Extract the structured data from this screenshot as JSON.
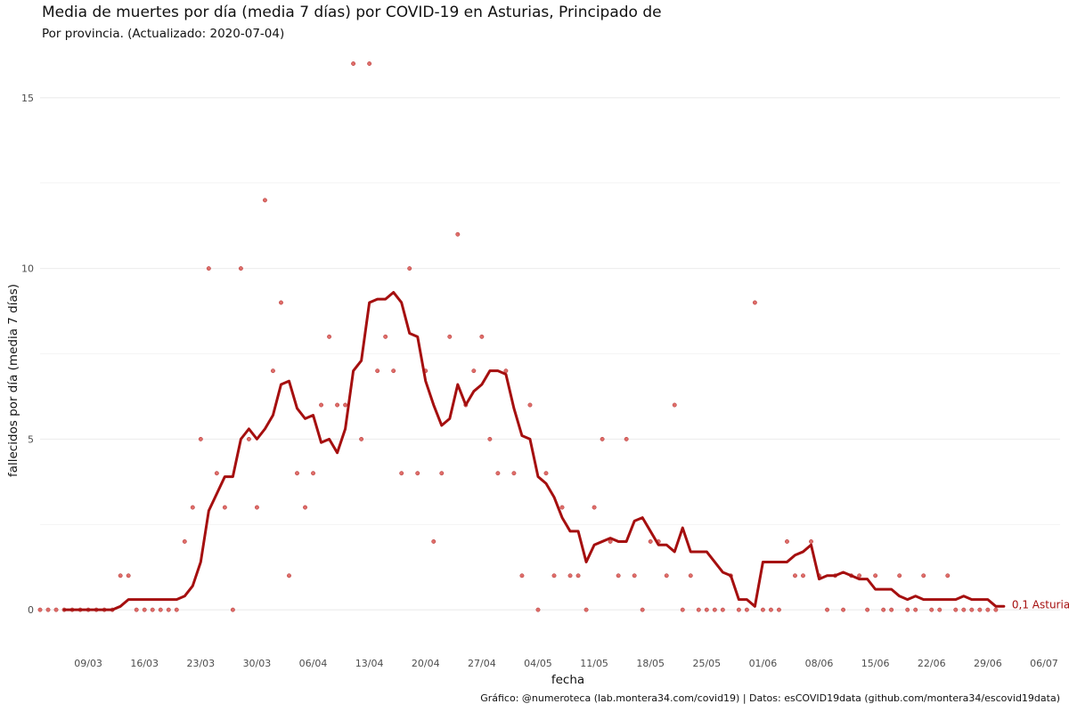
{
  "title": "Media de muertes por día (media 7 días) por COVID-19 en Asturias, Principado de",
  "subtitle": "Por provincia. (Actualizado: 2020-07-04)",
  "caption": "Gráfico: @numeroteca (lab.montera34.com/covid19) | Datos: esCOVID19data (github.com/montera34/escovid19data)",
  "colors": {
    "line": "#a50f0f",
    "points": "#d9534f",
    "grid": "#ebebeb"
  },
  "chart_data": {
    "type": "line",
    "title": "Media de muertes por día (media 7 días) por COVID-19 en Asturias, Principado de",
    "subtitle": "Por provincia. (Actualizado: 2020-07-04)",
    "xlabel": "fecha",
    "ylabel": "fallecidos por día (media 7 días)",
    "x_start": "2020-03-03",
    "xlim": [
      "2020-03-03",
      "2020-07-08"
    ],
    "ylim": [
      -1.3,
      16.3
    ],
    "y_ticks": [
      0,
      5,
      10,
      15
    ],
    "y_tick_labels": [
      "0",
      "5",
      "10",
      "15"
    ],
    "x_tick_labels": [
      "09/03",
      "16/03",
      "23/03",
      "30/03",
      "06/04",
      "13/04",
      "20/04",
      "27/04",
      "04/05",
      "11/05",
      "18/05",
      "25/05",
      "01/06",
      "08/06",
      "15/06",
      "22/06",
      "29/06",
      "06/07"
    ],
    "x_tick_dates": [
      "2020-03-09",
      "2020-03-16",
      "2020-03-23",
      "2020-03-30",
      "2020-04-06",
      "2020-04-13",
      "2020-04-20",
      "2020-04-27",
      "2020-05-04",
      "2020-05-11",
      "2020-05-18",
      "2020-05-25",
      "2020-06-01",
      "2020-06-08",
      "2020-06-15",
      "2020-06-22",
      "2020-06-29",
      "2020-07-06"
    ],
    "grid": true,
    "series": [
      {
        "name": "Asturias",
        "kind": "line",
        "end_label": "0,1 Asturias",
        "start": "2020-03-06",
        "values": [
          0,
          0,
          0,
          0,
          0,
          0,
          0,
          0.1,
          0.3,
          0.3,
          0.3,
          0.3,
          0.3,
          0.3,
          0.3,
          0.4,
          0.7,
          1.4,
          2.9,
          3.4,
          3.9,
          3.9,
          5.0,
          5.3,
          5.0,
          5.3,
          5.7,
          6.6,
          6.7,
          5.9,
          5.6,
          5.7,
          4.9,
          5.0,
          4.6,
          5.3,
          7.0,
          7.3,
          9.0,
          9.1,
          9.1,
          9.3,
          9.0,
          8.1,
          8.0,
          6.7,
          6.0,
          5.4,
          5.6,
          6.6,
          6.0,
          6.4,
          6.6,
          7.0,
          7.0,
          6.9,
          5.9,
          5.1,
          5.0,
          3.9,
          3.7,
          3.3,
          2.7,
          2.3,
          2.3,
          1.4,
          1.9,
          2.0,
          2.1,
          2.0,
          2.0,
          2.6,
          2.7,
          2.3,
          1.9,
          1.9,
          1.7,
          2.4,
          1.7,
          1.7,
          1.7,
          1.4,
          1.1,
          1.0,
          0.3,
          0.3,
          0.1,
          1.4,
          1.4,
          1.4,
          1.4,
          1.6,
          1.7,
          1.9,
          0.9,
          1.0,
          1.0,
          1.1,
          1.0,
          0.9,
          0.9,
          0.6,
          0.6,
          0.6,
          0.4,
          0.3,
          0.4,
          0.3,
          0.3,
          0.3,
          0.3,
          0.3,
          0.4,
          0.3,
          0.3,
          0.3,
          0.1,
          0.1
        ]
      },
      {
        "name": "fallecidos por día",
        "kind": "points",
        "start": "2020-03-03",
        "values": [
          0,
          0,
          0,
          0,
          0,
          0,
          0,
          0,
          0,
          0,
          1,
          1,
          0,
          0,
          0,
          0,
          0,
          0,
          2,
          3,
          5,
          10,
          4,
          3,
          0,
          10,
          5,
          3,
          12,
          7,
          9,
          1,
          4,
          3,
          4,
          6,
          8,
          6,
          6,
          16,
          5,
          16,
          7,
          8,
          7,
          4,
          10,
          4,
          7,
          2,
          4,
          8,
          11,
          6,
          7,
          8,
          5,
          4,
          7,
          4,
          1,
          6,
          0,
          4,
          1,
          3,
          1,
          1,
          0,
          3,
          5,
          2,
          1,
          5,
          1,
          0,
          2,
          2,
          1,
          6,
          0,
          1,
          0,
          0,
          0,
          0,
          1,
          0,
          0,
          9,
          0,
          0,
          0,
          2,
          1,
          1,
          2,
          1,
          0,
          1,
          0,
          1,
          1,
          0,
          1,
          0,
          0,
          1,
          0,
          0,
          1,
          0,
          0,
          1,
          0,
          0,
          0,
          0,
          0,
          0
        ]
      }
    ]
  }
}
